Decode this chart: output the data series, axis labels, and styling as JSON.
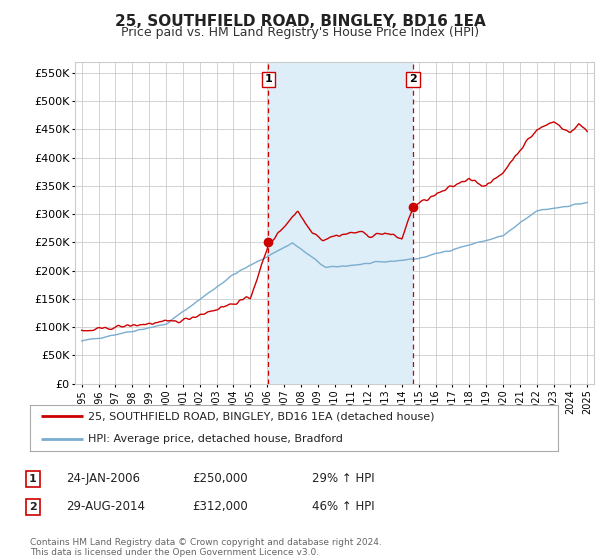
{
  "title": "25, SOUTHFIELD ROAD, BINGLEY, BD16 1EA",
  "subtitle": "Price paid vs. HM Land Registry's House Price Index (HPI)",
  "legend_line1": "25, SOUTHFIELD ROAD, BINGLEY, BD16 1EA (detached house)",
  "legend_line2": "HPI: Average price, detached house, Bradford",
  "annotation1": {
    "num": "1",
    "date": "24-JAN-2006",
    "price": "£250,000",
    "hpi": "29% ↑ HPI"
  },
  "annotation2": {
    "num": "2",
    "date": "29-AUG-2014",
    "price": "£312,000",
    "hpi": "46% ↑ HPI"
  },
  "footer": "Contains HM Land Registry data © Crown copyright and database right 2024.\nThis data is licensed under the Open Government Licence v3.0.",
  "sale1_year": 2006.07,
  "sale2_year": 2014.66,
  "sale1_price": 250000,
  "sale2_price": 312000,
  "red_color": "#cc0000",
  "blue_color": "#7aadcf",
  "shade_color": "#ddeef8",
  "grid_color": "#cccccc",
  "bg_color": "#ffffff",
  "ylim": [
    0,
    570000
  ],
  "yticks": [
    0,
    50000,
    100000,
    150000,
    200000,
    250000,
    300000,
    350000,
    400000,
    450000,
    500000,
    550000
  ],
  "xlim_min": 1994.6,
  "xlim_max": 2025.4
}
